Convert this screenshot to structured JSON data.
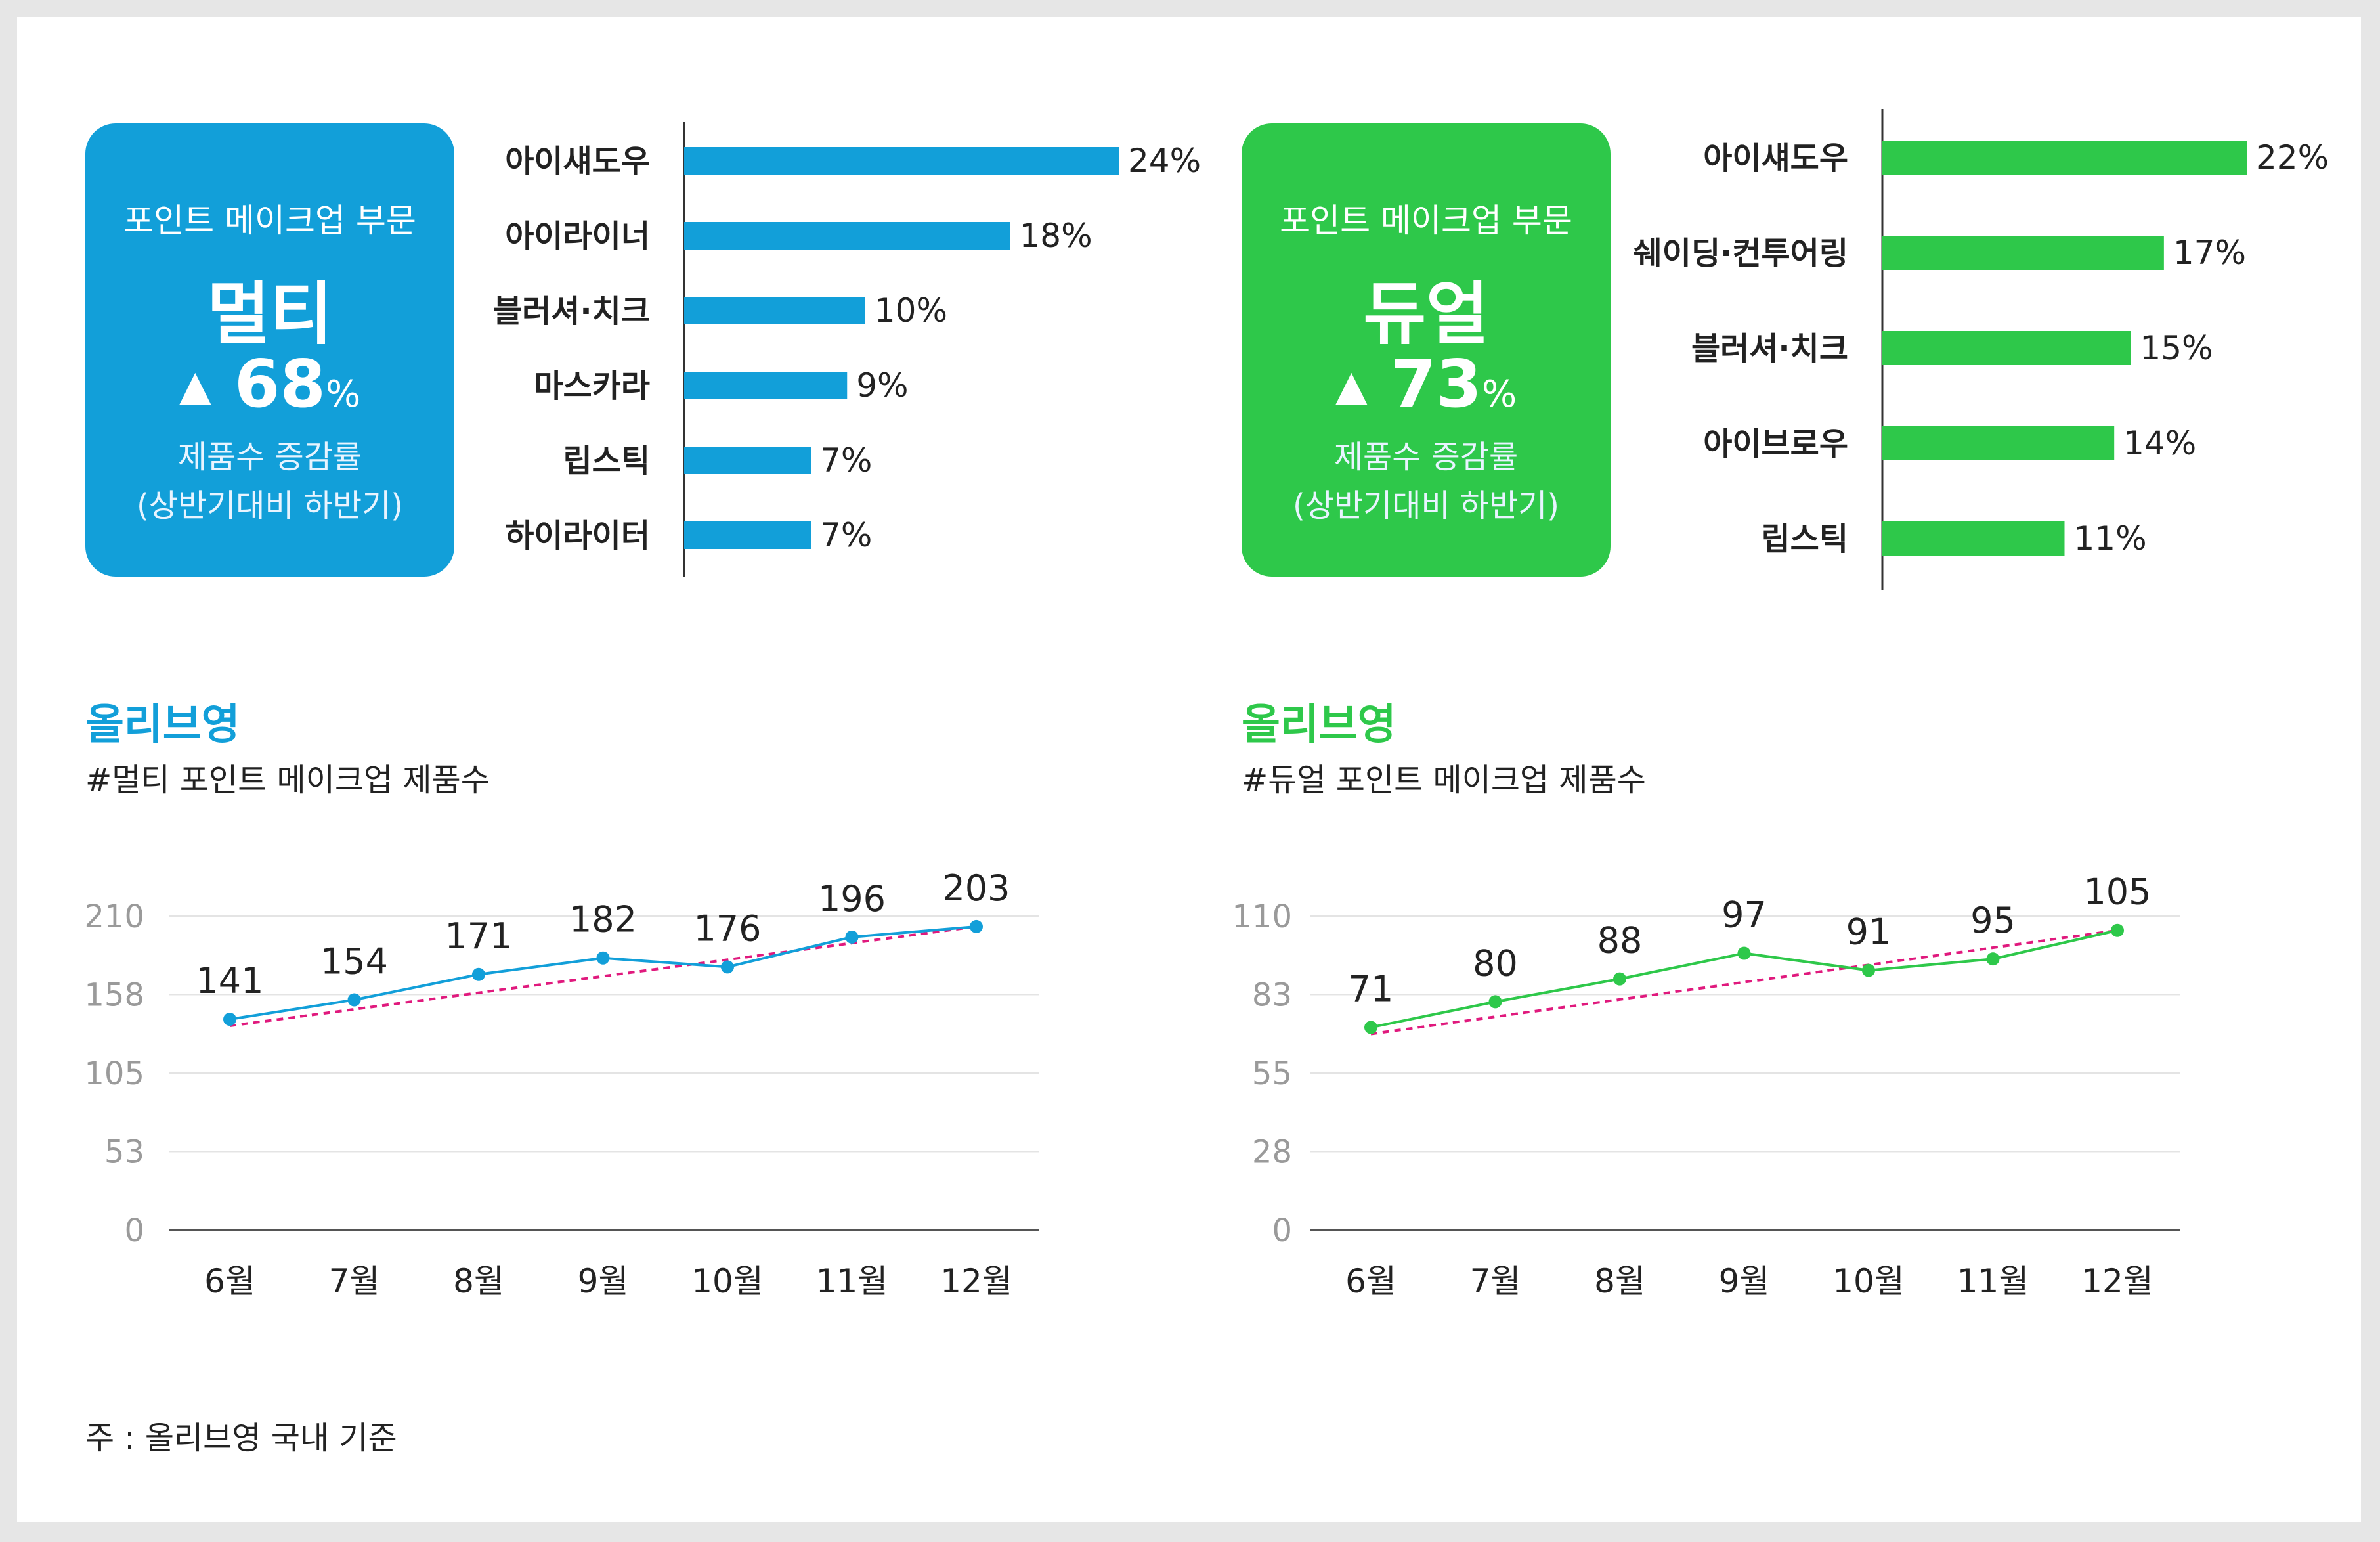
{
  "colors": {
    "blue": "#129fd9",
    "green": "#2ec84a",
    "trend": "#e0197d",
    "grid": "#e4e4e4",
    "axis": "#555555",
    "tick": "#9a9a9a"
  },
  "panels": [
    {
      "callout": {
        "category": "포인트 메이크업 부문",
        "main": "멀티",
        "arrow": "▲",
        "growth": "68",
        "unit": "%",
        "desc1": "제품수 증감률",
        "desc2": "(상반기대비 하반기)"
      },
      "line_title": {
        "brand": "올리브영",
        "subtitle": "#멀티 포인트 메이크업 제품수"
      }
    },
    {
      "callout": {
        "category": "포인트 메이크업 부문",
        "main": "듀얼",
        "arrow": "▲",
        "growth": "73",
        "unit": "%",
        "desc1": "제품수 증감률",
        "desc2": "(상반기대비 하반기)"
      },
      "line_title": {
        "brand": "올리브영",
        "subtitle": "#듀얼 포인트 메이크업 제품수"
      }
    }
  ],
  "footnote": "주 : 올리브영 국내 기준",
  "chart_data": [
    {
      "type": "bar",
      "orientation": "horizontal",
      "categories": [
        "아이섀도우",
        "아이라이너",
        "블러셔·치크",
        "마스카라",
        "립스틱",
        "하이라이터"
      ],
      "values": [
        24,
        18,
        10,
        9,
        7,
        7
      ],
      "value_suffix": "%",
      "color": "#129fd9"
    },
    {
      "type": "bar",
      "orientation": "horizontal",
      "categories": [
        "아이섀도우",
        "쉐이딩·컨투어링",
        "블러셔·치크",
        "아이브로우",
        "립스틱"
      ],
      "values": [
        22,
        17,
        15,
        14,
        11
      ],
      "value_suffix": "%",
      "color": "#2ec84a"
    },
    {
      "type": "line",
      "categories": [
        "6월",
        "7월",
        "8월",
        "9월",
        "10월",
        "11월",
        "12월"
      ],
      "values": [
        141,
        154,
        171,
        182,
        176,
        196,
        203
      ],
      "ylim": [
        0,
        210
      ],
      "yticks": [
        "210",
        "158",
        "105",
        "53",
        "0"
      ],
      "trendline": true,
      "grid": true,
      "color": "#129fd9"
    },
    {
      "type": "line",
      "categories": [
        "6월",
        "7월",
        "8월",
        "9월",
        "10월",
        "11월",
        "12월"
      ],
      "values": [
        71,
        80,
        88,
        97,
        91,
        95,
        105
      ],
      "ylim": [
        0,
        110
      ],
      "yticks": [
        "110",
        "83",
        "55",
        "28",
        "0"
      ],
      "trendline": true,
      "grid": true,
      "color": "#2ec84a"
    }
  ]
}
